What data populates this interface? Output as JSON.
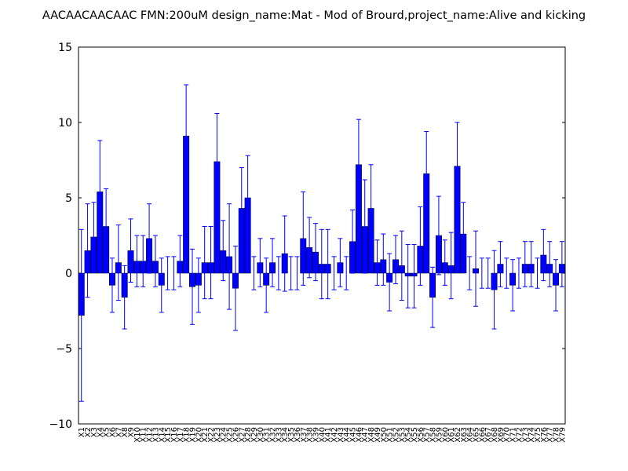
{
  "chart_data": {
    "type": "bar",
    "title": "AACAACAACAAC  FMN:200uM  design_name:Mat - Mod of Brourd,project_name:Alive and kicking",
    "categories": [
      "X1",
      "X2",
      "X3",
      "X4",
      "X5",
      "X6",
      "X7",
      "X8",
      "X9",
      "X10",
      "X11",
      "X12",
      "X13",
      "X14",
      "X15",
      "X16",
      "X17",
      "X18",
      "X19",
      "X20",
      "X21",
      "X22",
      "X23",
      "X24",
      "X25",
      "X26",
      "X27",
      "X28",
      "X29",
      "X30",
      "X31",
      "X32",
      "X33",
      "X34",
      "X35",
      "X36",
      "X37",
      "X38",
      "X39",
      "X40",
      "X41",
      "X42",
      "X43",
      "X44",
      "X45",
      "X46",
      "X47",
      "X48",
      "X49",
      "X50",
      "X51",
      "X52",
      "X53",
      "X54",
      "X55",
      "X56",
      "X57",
      "X58",
      "X59",
      "X60",
      "X61",
      "X62",
      "X63",
      "X64",
      "X65",
      "X66",
      "X67",
      "X68",
      "X69",
      "X70",
      "X71",
      "X72",
      "X73",
      "X74",
      "X75",
      "X76",
      "X77",
      "X78",
      "X79"
    ],
    "values": [
      -2.8,
      1.5,
      2.4,
      5.4,
      3.1,
      -0.8,
      0.7,
      -1.6,
      1.5,
      0.8,
      0.8,
      2.3,
      0.8,
      -0.8,
      0,
      0,
      0.8,
      9.1,
      -0.9,
      -0.8,
      0.7,
      0.7,
      7.4,
      1.5,
      1.1,
      -1.0,
      4.3,
      5.0,
      0,
      0.7,
      -0.8,
      0.7,
      0,
      1.3,
      0,
      0,
      2.3,
      1.7,
      1.4,
      0.6,
      0.6,
      0,
      0.7,
      0,
      2.1,
      7.2,
      3.1,
      4.3,
      0.7,
      0.9,
      -0.6,
      0.9,
      0.5,
      -0.2,
      -0.2,
      1.8,
      6.6,
      -1.6,
      2.5,
      0.7,
      0.5,
      7.1,
      2.6,
      0,
      0.3,
      0,
      0,
      -1.1,
      0.6,
      0,
      -0.8,
      0,
      0.6,
      0.6,
      0,
      1.2,
      0.6,
      -0.8,
      0.6
    ],
    "errors": [
      5.7,
      3.1,
      2.3,
      3.4,
      2.5,
      1.8,
      2.5,
      2.1,
      2.1,
      1.7,
      1.7,
      2.3,
      1.7,
      1.8,
      1.1,
      1.1,
      1.7,
      3.4,
      2.5,
      1.8,
      2.4,
      2.4,
      3.2,
      2.0,
      3.5,
      2.8,
      2.7,
      2.8,
      1.1,
      1.6,
      1.8,
      1.6,
      1.1,
      2.5,
      1.1,
      1.1,
      3.1,
      2.0,
      1.9,
      2.3,
      2.3,
      1.1,
      1.6,
      1.1,
      2.1,
      3.0,
      3.1,
      2.9,
      1.5,
      1.7,
      1.9,
      1.6,
      2.3,
      2.1,
      2.1,
      2.6,
      2.8,
      2.0,
      2.6,
      1.5,
      2.2,
      2.9,
      2.1,
      1.1,
      2.5,
      1.0,
      1.0,
      2.6,
      1.5,
      1.0,
      1.7,
      1.0,
      1.5,
      1.5,
      1.0,
      1.7,
      1.5,
      1.7,
      1.5
    ],
    "color": "#0000ff",
    "error_color": "#0000ff",
    "ylim": [
      -10,
      15
    ],
    "yticks": [
      {
        "value": -10,
        "label": "−10"
      },
      {
        "value": -5,
        "label": "−5"
      },
      0,
      5,
      10,
      15
    ],
    "grid": false
  }
}
